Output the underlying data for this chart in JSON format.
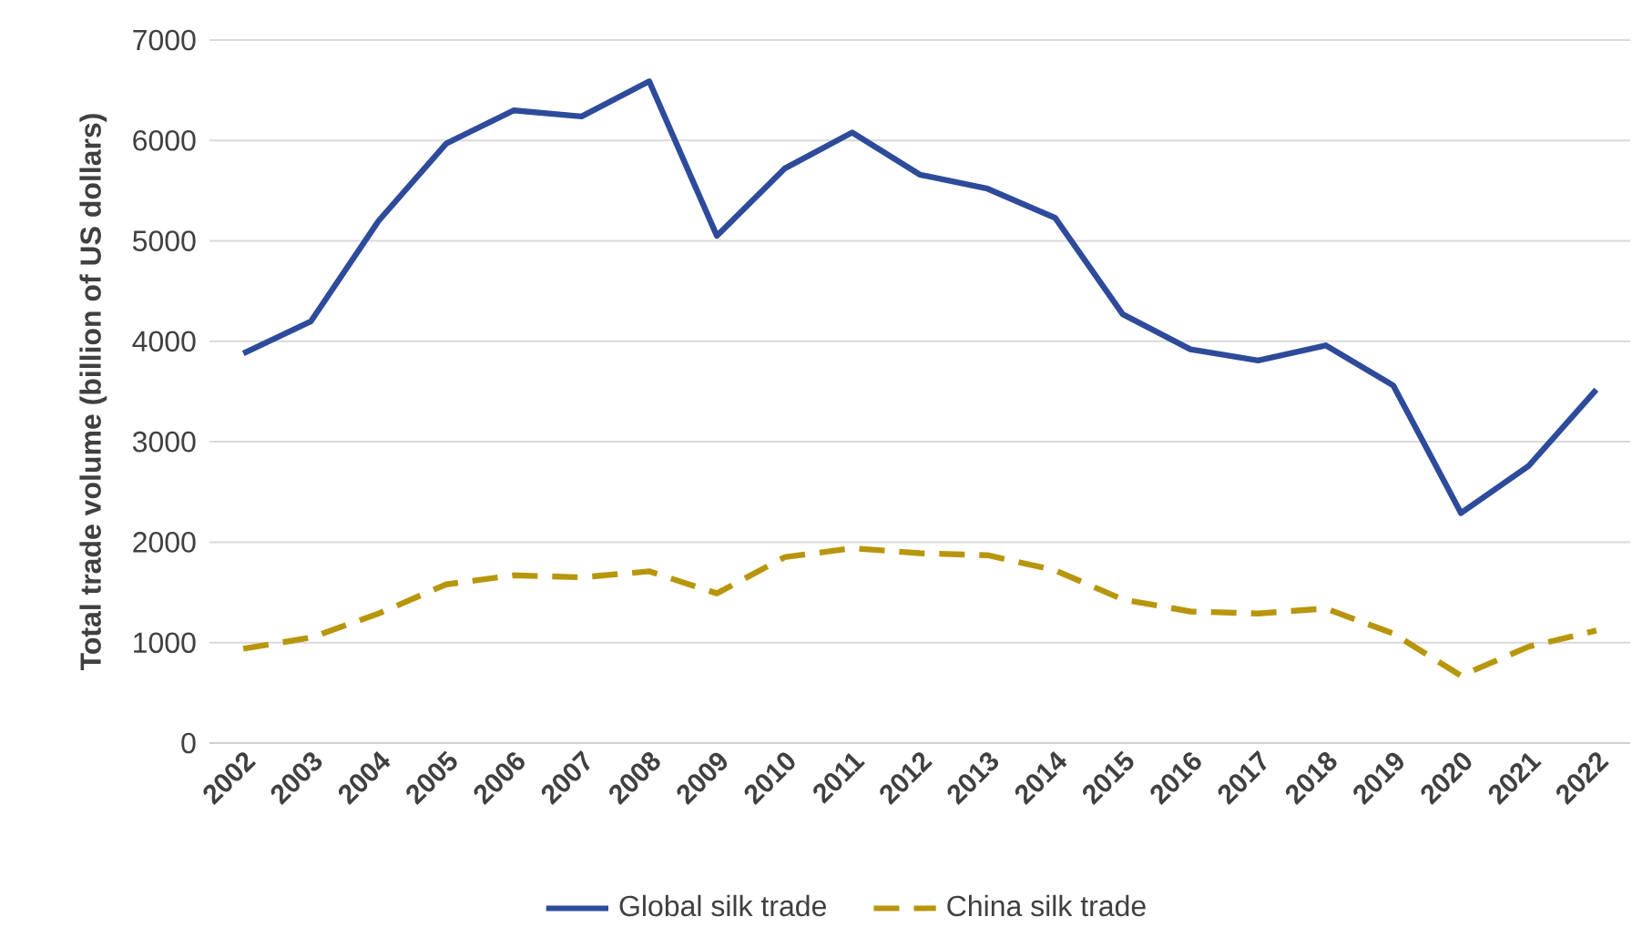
{
  "chart_data": {
    "type": "line",
    "categories": [
      "2002",
      "2003",
      "2004",
      "2005",
      "2006",
      "2007",
      "2008",
      "2009",
      "2010",
      "2011",
      "2012",
      "2013",
      "2014",
      "2015",
      "2016",
      "2017",
      "2018",
      "2019",
      "2020",
      "2021",
      "2022"
    ],
    "ylabel": "Total trade volume (billion of US dollars)",
    "ylim": [
      0,
      7000
    ],
    "yticks": [
      0,
      1000,
      2000,
      3000,
      4000,
      5000,
      6000,
      7000
    ],
    "grid": "y",
    "legend": "bottom",
    "marker": "none",
    "series": [
      {
        "name": "Global silk trade",
        "color": "#2e4b9b",
        "line_style": "solid",
        "values": [
          3880,
          4200,
          5200,
          5970,
          6300,
          6240,
          6590,
          5050,
          5720,
          6080,
          5660,
          5520,
          5230,
          4270,
          3920,
          3810,
          3960,
          3560,
          2290,
          2760,
          3520
        ]
      },
      {
        "name": "China silk trade",
        "color": "#b8960c",
        "line_style": "dashed",
        "values": [
          940,
          1050,
          1290,
          1580,
          1670,
          1650,
          1710,
          1490,
          1850,
          1940,
          1890,
          1870,
          1720,
          1430,
          1310,
          1290,
          1340,
          1090,
          670,
          960,
          1120
        ]
      }
    ]
  }
}
